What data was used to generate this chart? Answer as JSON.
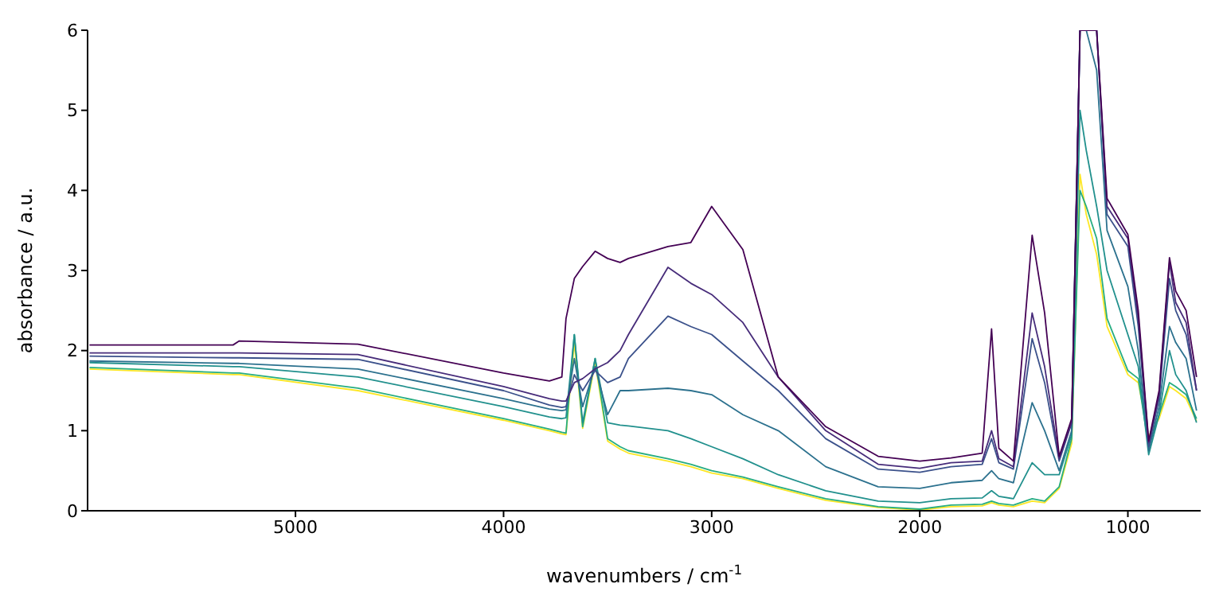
{
  "chart_data": {
    "type": "line",
    "xlabel": "wavenumbers / cm$^{-1}$",
    "ylabel": "absorbance / a.u.",
    "x": [
      5990,
      5300,
      5270,
      4700,
      4000,
      3780,
      3720,
      3700,
      3660,
      3620,
      3560,
      3500,
      3440,
      3400,
      3210,
      3100,
      3000,
      2850,
      2680,
      2452,
      2200,
      2000,
      1850,
      1700,
      1655,
      1620,
      1550,
      1460,
      1400,
      1330,
      1270,
      1230,
      1200,
      1150,
      1100,
      1000,
      950,
      900,
      850,
      800,
      770,
      720,
      670
    ],
    "xlim": [
      5999,
      650
    ],
    "xticks": [
      5000,
      4000,
      3000,
      2000,
      1000
    ],
    "ylim": [
      0,
      6
    ],
    "yticks": [
      0,
      1,
      2,
      3,
      4,
      5,
      6
    ],
    "grid": false,
    "legend": false,
    "marker": "none",
    "line_style": "solid",
    "series": [
      {
        "color": "#fde725",
        "values": [
          1.77,
          1.7,
          1.7,
          1.5,
          1.13,
          1.0,
          0.96,
          0.95,
          2.1,
          1.03,
          1.85,
          0.87,
          0.77,
          0.72,
          0.62,
          0.55,
          0.47,
          0.4,
          0.28,
          0.13,
          0.04,
          0.01,
          0.05,
          0.06,
          0.1,
          0.07,
          0.05,
          0.12,
          0.1,
          0.28,
          0.84,
          4.2,
          3.7,
          3.2,
          2.3,
          1.7,
          1.6,
          0.93,
          1.15,
          1.55,
          1.5,
          1.4,
          1.12
        ]
      },
      {
        "color": "#27ad81",
        "values": [
          1.79,
          1.72,
          1.72,
          1.53,
          1.15,
          1.02,
          0.98,
          0.97,
          2.2,
          1.05,
          1.9,
          0.9,
          0.8,
          0.75,
          0.65,
          0.58,
          0.5,
          0.42,
          0.3,
          0.15,
          0.05,
          0.02,
          0.07,
          0.08,
          0.12,
          0.09,
          0.07,
          0.15,
          0.12,
          0.3,
          0.9,
          4.0,
          3.8,
          3.4,
          2.4,
          1.75,
          1.65,
          0.8,
          1.2,
          1.6,
          1.55,
          1.45,
          1.15
        ]
      },
      {
        "color": "#21908d",
        "values": [
          1.85,
          1.8,
          1.8,
          1.67,
          1.3,
          1.17,
          1.15,
          1.16,
          2.2,
          1.1,
          1.9,
          1.1,
          1.07,
          1.06,
          1.0,
          0.9,
          0.8,
          0.65,
          0.45,
          0.25,
          0.12,
          0.1,
          0.15,
          0.16,
          0.25,
          0.18,
          0.15,
          0.6,
          0.45,
          0.45,
          0.95,
          5.0,
          4.5,
          3.8,
          3.0,
          2.2,
          1.8,
          0.7,
          1.2,
          2.0,
          1.7,
          1.5,
          1.1
        ]
      },
      {
        "color": "#2c718e",
        "values": [
          1.87,
          1.84,
          1.84,
          1.77,
          1.4,
          1.27,
          1.25,
          1.26,
          1.9,
          1.3,
          1.8,
          1.2,
          1.5,
          1.5,
          1.53,
          1.5,
          1.45,
          1.2,
          1.0,
          0.55,
          0.3,
          0.28,
          0.35,
          0.38,
          0.5,
          0.4,
          0.35,
          1.35,
          1.0,
          0.5,
          1.0,
          6,
          6,
          5.5,
          3.5,
          2.8,
          2.0,
          0.75,
          1.3,
          2.3,
          2.1,
          1.9,
          1.25
        ]
      },
      {
        "color": "#3b518b",
        "values": [
          1.93,
          1.91,
          1.91,
          1.89,
          1.5,
          1.32,
          1.29,
          1.3,
          1.7,
          1.5,
          1.75,
          1.6,
          1.67,
          1.9,
          2.43,
          2.3,
          2.2,
          1.87,
          1.5,
          0.9,
          0.52,
          0.48,
          0.55,
          0.58,
          0.9,
          0.6,
          0.52,
          2.15,
          1.6,
          0.62,
          1.1,
          6,
          6,
          6,
          3.7,
          3.3,
          2.3,
          0.8,
          1.4,
          2.9,
          2.5,
          2.2,
          1.5
        ]
      },
      {
        "color": "#472c7a",
        "values": [
          1.97,
          1.97,
          1.97,
          1.95,
          1.55,
          1.4,
          1.37,
          1.37,
          1.6,
          1.65,
          1.77,
          1.85,
          2.0,
          2.2,
          3.04,
          2.84,
          2.7,
          2.35,
          1.67,
          1.0,
          0.58,
          0.53,
          0.6,
          0.62,
          1.0,
          0.65,
          0.55,
          2.47,
          1.8,
          0.65,
          1.1,
          6,
          6,
          6,
          3.8,
          3.4,
          2.4,
          0.85,
          1.45,
          3.1,
          2.6,
          2.35,
          1.5
        ]
      },
      {
        "color": "#440154",
        "values": [
          2.07,
          2.07,
          2.12,
          2.08,
          1.72,
          1.62,
          1.67,
          2.4,
          2.9,
          3.05,
          3.24,
          3.15,
          3.1,
          3.15,
          3.3,
          3.35,
          3.8,
          3.26,
          1.67,
          1.05,
          0.68,
          0.62,
          0.66,
          0.72,
          2.27,
          0.78,
          0.62,
          3.44,
          2.47,
          0.68,
          1.15,
          6,
          6,
          6,
          3.9,
          3.45,
          2.5,
          0.87,
          1.5,
          3.16,
          2.74,
          2.5,
          1.67
        ]
      }
    ]
  }
}
